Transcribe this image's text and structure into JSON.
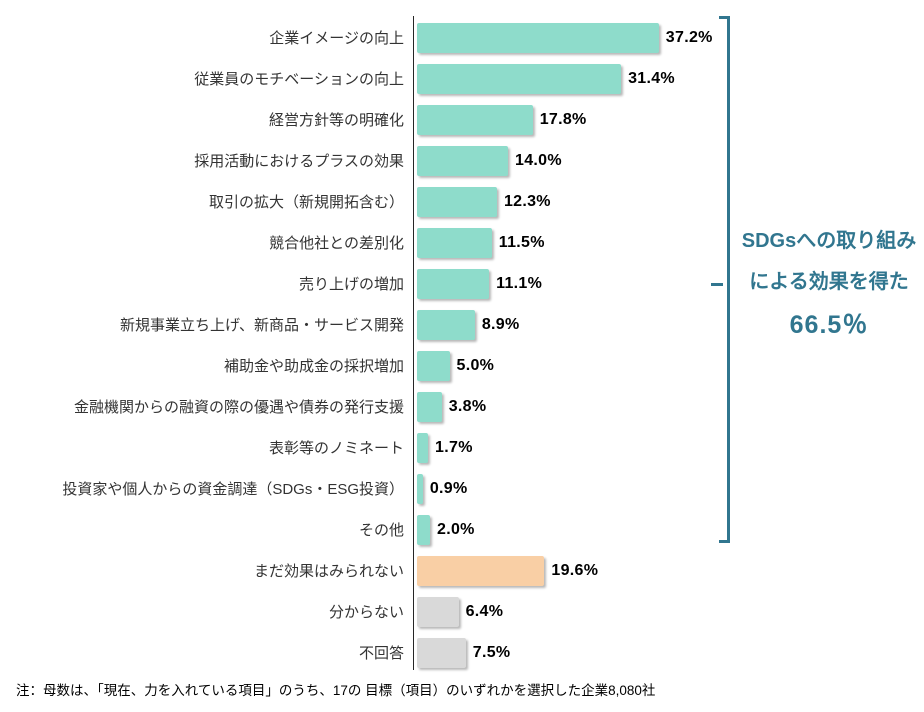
{
  "chart_data": {
    "type": "bar",
    "orientation": "horizontal",
    "title": "",
    "xlabel": "",
    "ylabel": "",
    "xlim": [
      0,
      40
    ],
    "grid": false,
    "categories": [
      "企業イメージの向上",
      "従業員のモチベーションの向上",
      "経営方針等の明確化",
      "採用活動におけるプラスの効果",
      "取引の拡大（新規開拓含む）",
      "競合他社との差別化",
      "売り上げの増加",
      "新規事業立ち上げ、新商品・サービス開発",
      "補助金や助成金の採択増加",
      "金融機関からの融資の際の優遇や債券の発行支援",
      "表彰等のノミネート",
      "投資家や個人からの資金調達（SDGs・ESG投資）",
      "その他",
      "まだ効果はみられない",
      "分からない",
      "不回答"
    ],
    "values": [
      37.2,
      31.4,
      17.8,
      14.0,
      12.3,
      11.5,
      11.1,
      8.9,
      5.0,
      3.8,
      1.7,
      0.9,
      2.0,
      19.6,
      6.4,
      7.5
    ],
    "value_labels": [
      "37.2%",
      "31.4%",
      "17.8%",
      "14.0%",
      "12.3%",
      "11.5%",
      "11.1%",
      "8.9%",
      "5.0%",
      "3.8%",
      "1.7%",
      "0.9%",
      "2.0%",
      "19.6%",
      "6.4%",
      "7.5%"
    ],
    "bar_colors": [
      "teal",
      "teal",
      "teal",
      "teal",
      "teal",
      "teal",
      "teal",
      "teal",
      "teal",
      "teal",
      "teal",
      "teal",
      "teal",
      "orange",
      "gray",
      "gray"
    ]
  },
  "annotation": {
    "line1": "SDGsへの取り組み",
    "line2": "による効果を得た",
    "value": "66.5％"
  },
  "footnote": "注：母数は、「現在、力を入れている項目」のうち、17の 目標（項目）のいずれかを選択した企業8,080社",
  "colors": {
    "teal": "#8EDCCB",
    "orange": "#F9CFA5",
    "gray": "#D9D9D9",
    "accent": "#31768F",
    "axis": "#262626"
  }
}
